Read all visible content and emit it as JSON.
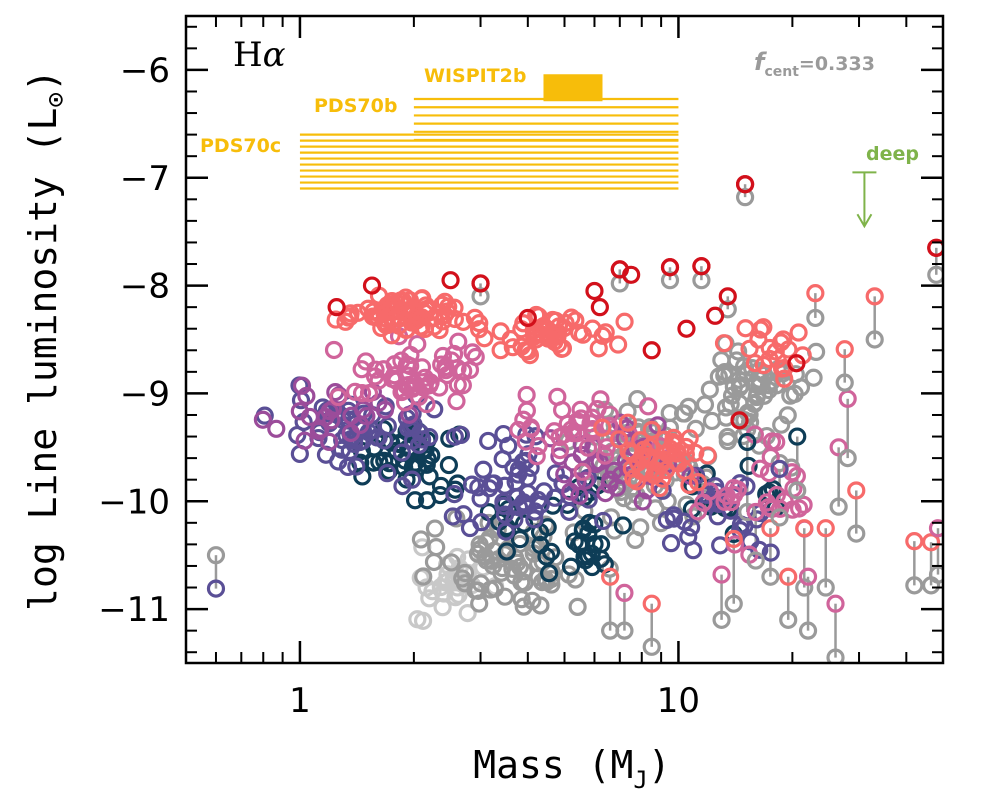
{
  "colors": {
    "gray": "#9a9a9a",
    "light_gray": "#c8c8c8",
    "dark_teal": "#0e3d57",
    "indigo": "#5a4f96",
    "purple": "#9b4c9a",
    "pink": "#d0649b",
    "salmon": "#f76a6a",
    "red": "#d2101b",
    "gold": "#f7bd0a",
    "green": "#7fb34a"
  },
  "chart_data": {
    "type": "scatter",
    "title": "",
    "panel_label_main": "H",
    "panel_label_greek": "α",
    "xlabel": "Mass (M_J)",
    "xlabel_main": "Mass (M",
    "xlabel_sub": "J",
    "xlabel_close": ")",
    "ylabel": "log Line luminosity (L_⊙)",
    "ylabel_main": "log Line luminosity (L",
    "ylabel_sub": "⊙",
    "ylabel_close": ")",
    "xscale": "log",
    "xlim": [
      0.5,
      50
    ],
    "ylim": [
      -11.5,
      -5.5
    ],
    "xticks": [
      {
        "value": 1,
        "label": "1"
      },
      {
        "value": 10,
        "label": "10"
      }
    ],
    "yticks": [
      {
        "value": -6,
        "label": "−6"
      },
      {
        "value": -7,
        "label": "−7"
      },
      {
        "value": -8,
        "label": "−8"
      },
      {
        "value": -9,
        "label": "−9"
      },
      {
        "value": -10,
        "label": "−10"
      },
      {
        "value": -11,
        "label": "−11"
      }
    ],
    "fcent": {
      "symbol": "f",
      "subscript": "cent",
      "value": "=0.333"
    },
    "deep_limit": {
      "label": "deep",
      "mass": 31,
      "value": -6.95,
      "arrow_to": -7.45
    },
    "observed_planets": [
      {
        "name": "WISPIT2b",
        "mass_range": [
          4.4,
          6.3
        ],
        "lum_range": [
          -6.28,
          -6.05
        ],
        "lines": 4
      },
      {
        "name": "PDS70b",
        "mass_range": [
          2.0,
          10.0
        ],
        "lum_range": [
          -6.65,
          -6.27
        ],
        "lines": 6
      },
      {
        "name": "PDS70c",
        "mass_range": [
          1.0,
          10.0
        ],
        "lum_range": [
          -7.1,
          -6.6
        ],
        "lines": 10
      }
    ],
    "pairs": [
      {
        "x": 0.6,
        "y0": -10.81,
        "y1": -10.5
      },
      {
        "x": 6.6,
        "y0": -10.7,
        "y1": -11.2
      },
      {
        "x": 7.2,
        "y0": -10.85,
        "y1": -11.2
      },
      {
        "x": 8.5,
        "y0": -10.95,
        "y1": -11.35
      },
      {
        "x": 13.0,
        "y0": -10.68,
        "y1": -11.1
      },
      {
        "x": 14.0,
        "y0": -10.35,
        "y1": -10.95
      },
      {
        "x": 15.2,
        "y0": -9.45,
        "y1": -10.1
      },
      {
        "x": 16.0,
        "y0": -10.1,
        "y1": -10.55
      },
      {
        "x": 17.5,
        "y0": -10.25,
        "y1": -10.7
      },
      {
        "x": 18.5,
        "y0": -9.7,
        "y1": -10.15
      },
      {
        "x": 19.5,
        "y0": -10.7,
        "y1": -11.1
      },
      {
        "x": 20.6,
        "y0": -9.4,
        "y1": -9.9
      },
      {
        "x": 21.5,
        "y0": -10.25,
        "y1": -10.8
      },
      {
        "x": 22.0,
        "y0": -10.7,
        "y1": -11.2
      },
      {
        "x": 24.5,
        "y0": -10.25,
        "y1": -10.8
      },
      {
        "x": 26.0,
        "y0": -10.95,
        "y1": -11.45
      },
      {
        "x": 26.5,
        "y0": -9.5,
        "y1": -10.05
      },
      {
        "x": 28.0,
        "y0": -9.05,
        "y1": -9.6
      },
      {
        "x": 29.5,
        "y0": -9.9,
        "y1": -10.3
      },
      {
        "x": 42.0,
        "y0": -10.37,
        "y1": -10.78
      },
      {
        "x": 46.5,
        "y0": -10.38,
        "y1": -10.78
      },
      {
        "x": 48.5,
        "y0": -10.25,
        "y1": -10.68
      },
      {
        "x": 15.0,
        "y0": -7.06,
        "y1": -7.18
      },
      {
        "x": 48.0,
        "y0": -7.65,
        "y1": -7.9
      },
      {
        "x": 3.0,
        "y0": -7.98,
        "y1": -8.1
      },
      {
        "x": 7.0,
        "y0": -7.85,
        "y1": -7.98
      },
      {
        "x": 9.5,
        "y0": -7.83,
        "y1": -7.95
      },
      {
        "x": 11.5,
        "y0": -7.82,
        "y1": -7.95
      },
      {
        "x": 13.5,
        "y0": -8.1,
        "y1": -8.22
      },
      {
        "x": 23.0,
        "y0": -8.07,
        "y1": -8.3
      },
      {
        "x": 27.5,
        "y0": -8.59,
        "y1": -8.9
      },
      {
        "x": 33.0,
        "y0": -8.1,
        "y1": -8.5
      }
    ],
    "highlight_points": [
      {
        "x": 1.55,
        "y": -8.0,
        "c": "red"
      },
      {
        "x": 1.25,
        "y": -8.2,
        "c": "red"
      },
      {
        "x": 2.5,
        "y": -7.95,
        "c": "red"
      },
      {
        "x": 3.0,
        "y": -7.98,
        "c": "red"
      },
      {
        "x": 4.0,
        "y": -8.3,
        "c": "red"
      },
      {
        "x": 6.0,
        "y": -8.05,
        "c": "red"
      },
      {
        "x": 7.0,
        "y": -7.85,
        "c": "red"
      },
      {
        "x": 7.5,
        "y": -7.9,
        "c": "red"
      },
      {
        "x": 9.5,
        "y": -7.83,
        "c": "red"
      },
      {
        "x": 11.5,
        "y": -7.82,
        "c": "red"
      },
      {
        "x": 15.0,
        "y": -7.06,
        "c": "red"
      },
      {
        "x": 48.0,
        "y": -7.65,
        "c": "red"
      },
      {
        "x": 8.5,
        "y": -8.6,
        "c": "red"
      },
      {
        "x": 10.5,
        "y": -8.4,
        "c": "red"
      },
      {
        "x": 12.5,
        "y": -8.28,
        "c": "red"
      },
      {
        "x": 20.5,
        "y": -8.72,
        "c": "red"
      },
      {
        "x": 14.5,
        "y": -9.25,
        "c": "red"
      },
      {
        "x": 6.2,
        "y": -8.2,
        "c": "red"
      }
    ]
  }
}
